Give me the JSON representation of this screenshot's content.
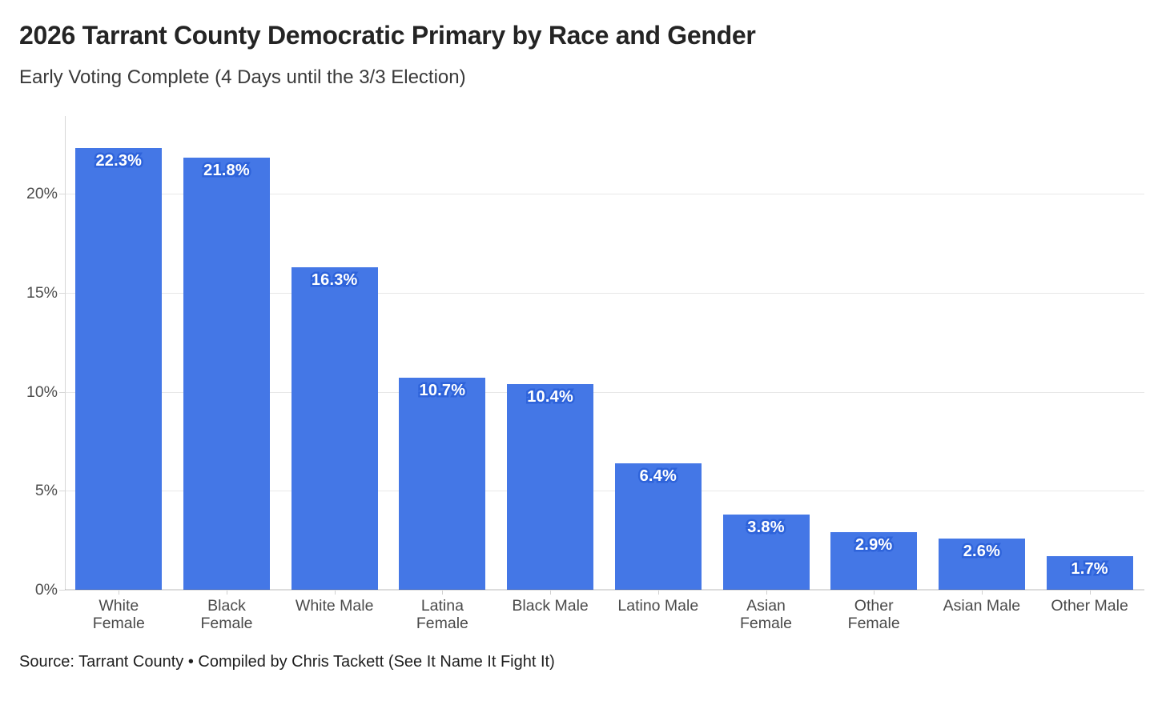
{
  "header": {
    "title": "2026 Tarrant County Democratic Primary by Race and Gender",
    "subtitle": "Early Voting Complete (4 Days until the 3/3 Election)"
  },
  "footer": {
    "source": "Source: Tarrant County • Compiled by Chris Tackett (See It Name It Fight It)"
  },
  "chart_data": {
    "type": "bar",
    "title": "2026 Tarrant County Democratic Primary by Race and Gender",
    "subtitle": "Early Voting Complete (4 Days until the 3/3 Election)",
    "categories": [
      "White Female",
      "Black Female",
      "White Male",
      "Latina Female",
      "Black Male",
      "Latino Male",
      "Asian Female",
      "Other Female",
      "Asian Male",
      "Other Male"
    ],
    "category_display_lines": [
      "White\nFemale",
      "Black\nFemale",
      "White Male",
      "Latina\nFemale",
      "Black Male",
      "Latino Male",
      "Asian\nFemale",
      "Other\nFemale",
      "Asian Male",
      "Other Male"
    ],
    "values": [
      22.3,
      21.8,
      16.3,
      10.7,
      10.4,
      6.4,
      3.8,
      2.9,
      2.6,
      1.7
    ],
    "value_labels": [
      "22.3%",
      "21.8%",
      "16.3%",
      "10.7%",
      "10.4%",
      "6.4%",
      "3.8%",
      "2.9%",
      "2.6%",
      "1.7%"
    ],
    "xlabel": "",
    "ylabel": "",
    "ylim": [
      0,
      23.9
    ],
    "yticks": [
      0,
      5,
      10,
      15,
      20
    ],
    "ytick_labels": [
      "0%",
      "5%",
      "10%",
      "15%",
      "20%"
    ],
    "grid": true,
    "legend": "none",
    "colors": {
      "bar": "#4477e6",
      "bar_label_text": "#ffffff",
      "bar_label_halo": "#2e63da",
      "grid_line": "#e8e8e8",
      "axis_line": "#d8d8d8",
      "axis_text": "#4d4d4d",
      "title_text": "#242424",
      "subtitle_text": "#3a3a3a",
      "source_text": "#1f1f1f"
    }
  }
}
